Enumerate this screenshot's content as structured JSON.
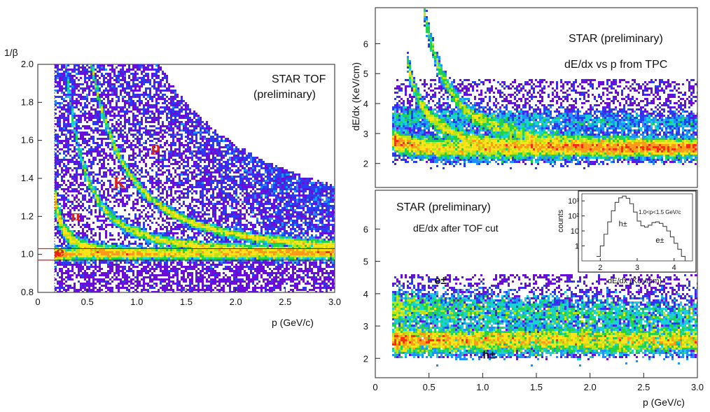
{
  "chart_data": [
    {
      "id": "tof",
      "type": "heatmap",
      "ylabel": "1/β",
      "xlabel": "p (GeV/c)",
      "title": "STAR TOF",
      "subtitle": "(preliminary)",
      "xlim": [
        0,
        3.0
      ],
      "ylim": [
        0.8,
        2.0
      ],
      "xticks": [
        "0",
        "0.5",
        "1.0",
        "1.5",
        "2.0",
        "2.5",
        "3.0"
      ],
      "yticks": [
        "0.8",
        "1.0",
        "1.2",
        "1.4",
        "1.6",
        "1.8",
        "2.0"
      ],
      "bands": [
        {
          "name": "e",
          "mass": 0.000511
        },
        {
          "name": "π",
          "mass": 0.1396
        },
        {
          "name": "K",
          "mass": 0.4937
        },
        {
          "name": "p",
          "mass": 0.9383
        }
      ],
      "annotations": [
        {
          "text": "p",
          "x": 1.14,
          "y": 1.54
        },
        {
          "text": "K",
          "x": 0.76,
          "y": 1.35
        },
        {
          "text": "π",
          "x": 0.33,
          "y": 1.18
        },
        {
          "text": "e",
          "x": 0.18,
          "y": 0.99
        }
      ],
      "cut_lines": [
        0.97,
        1.03
      ]
    },
    {
      "id": "tpc",
      "type": "heatmap",
      "ylabel": "dE/dx (KeV/cm)",
      "title": "STAR (preliminary)",
      "subtitle": "dE/dx vs p from TPC",
      "xlim": [
        0,
        3.0
      ],
      "ylim": [
        1.2,
        7.2
      ],
      "yticks": [
        "2",
        "3",
        "4",
        "5",
        "6"
      ]
    },
    {
      "id": "tpc_tofcut",
      "type": "heatmap",
      "xlabel": "p (GeV/c)",
      "title": "STAR (preliminary)",
      "subtitle": "dE/dx after TOF cut",
      "xlim": [
        0,
        3.0
      ],
      "ylim": [
        1.4,
        7.2
      ],
      "xticks": [
        "0",
        "0.5",
        "1.0",
        "1.5",
        "2.0",
        "2.5",
        "3.0"
      ],
      "yticks": [
        "2",
        "3",
        "4",
        "5",
        "6"
      ],
      "annotations": [
        {
          "text": "e±",
          "x": 0.55,
          "y": 4.3
        },
        {
          "text": "h±",
          "x": 1.0,
          "y": 2.0
        }
      ]
    },
    {
      "id": "inset",
      "type": "line",
      "xlabel": "dE/dx (KeV/cm)",
      "ylabel": "counts",
      "cut_label": "1.0<p<1.5 GeV/c",
      "xlim": [
        1.5,
        4.5
      ],
      "xticks": [
        "2",
        "3",
        "4"
      ],
      "yticks": [
        "1",
        "10",
        "10²",
        "10³"
      ],
      "ylog": true,
      "ylim": [
        0.1,
        3000
      ],
      "annotations": [
        {
          "text": "h±",
          "x": 2.5,
          "y": 20
        },
        {
          "text": "e±",
          "x": 3.5,
          "y": 1.6
        }
      ],
      "series": [
        {
          "x": [
            1.9,
            2.0,
            2.1,
            2.2,
            2.3,
            2.4,
            2.5,
            2.6,
            2.7,
            2.8,
            2.9,
            3.0,
            3.1,
            3.2,
            3.3,
            3.4,
            3.5,
            3.6,
            3.7,
            3.8,
            3.9,
            4.0,
            4.1,
            4.2,
            4.3
          ],
          "values": [
            0.2,
            1,
            6,
            40,
            220,
            800,
            1600,
            2100,
            1500,
            650,
            180,
            45,
            22,
            18,
            24,
            36,
            40,
            32,
            20,
            10,
            4,
            1.5,
            0.6,
            0.2,
            0.1
          ]
        }
      ]
    }
  ]
}
